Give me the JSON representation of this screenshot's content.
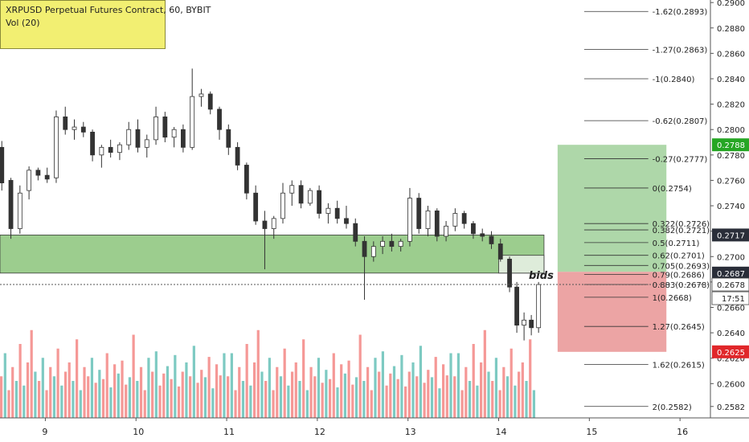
{
  "header": {
    "symbol_line": "XRPUSD Perpetual Futures Contract, 60, BYBIT",
    "volume_line": "Vol (20)"
  },
  "colors": {
    "up": "#26a69a",
    "down": "#ef5350",
    "candle_body": "#333333",
    "zone_green": "#8bc47a",
    "target_green": "#a5d3a0",
    "stop_red": "#ea9a9a",
    "price_badge": "#2a2e39",
    "badge_green": "#26a624",
    "badge_red": "#e0272a",
    "fib_line": "#333333"
  },
  "price_axis": {
    "ticks": [
      "0.2900",
      "0.2880",
      "0.2860",
      "0.2840",
      "0.2820",
      "0.2800",
      "0.2780",
      "0.2760",
      "0.2740",
      "0.2720",
      "0.2700",
      "0.2680",
      "0.2660",
      "0.2640",
      "0.2620",
      "0.2600",
      "0.2582"
    ],
    "current_price": "0.2678",
    "countdown": "17:51",
    "badges": [
      {
        "label": "0.2788",
        "price": 0.2788,
        "color": "#26a624"
      },
      {
        "label": "0.2717",
        "price": 0.2717,
        "color": "#2a2e39"
      },
      {
        "label": "0.2687",
        "price": 0.2687,
        "color": "#2a2e39"
      },
      {
        "label": "0.2678",
        "price": 0.2678,
        "color": "#ffffff"
      },
      {
        "label": "0.2625",
        "price": 0.2625,
        "color": "#e0272a"
      }
    ]
  },
  "time_axis": {
    "labels": [
      "9",
      "10",
      "11",
      "12",
      "13",
      "14",
      "15",
      "16"
    ]
  },
  "annotations": {
    "bids_label": "bids"
  },
  "fib_levels": [
    {
      "label": "-1.62(0.2893)",
      "price": 0.2893
    },
    {
      "label": "-1.27(0.2863)",
      "price": 0.2863
    },
    {
      "label": "-1(0.2840)",
      "price": 0.284
    },
    {
      "label": "-0.62(0.2807)",
      "price": 0.2807
    },
    {
      "label": "-0.27(0.2777)",
      "price": 0.2777
    },
    {
      "label": "0(0.2754)",
      "price": 0.2754
    },
    {
      "label": "0.382(0.2721)",
      "price": 0.2721
    },
    {
      "label": "0.322(0.2726)",
      "price": 0.2726
    },
    {
      "label": "0.5(0.2711)",
      "price": 0.2711
    },
    {
      "label": "0.62(0.2701)",
      "price": 0.2701
    },
    {
      "label": "0.705(0.2693)",
      "price": 0.2693
    },
    {
      "label": "0.79(0.2686)",
      "price": 0.2686
    },
    {
      "label": "0.883(0.2678)",
      "price": 0.2678
    },
    {
      "label": "1(0.2668)",
      "price": 0.2668
    },
    {
      "label": "1.27(0.2645)",
      "price": 0.2645
    },
    {
      "label": "1.62(0.2615)",
      "price": 0.2615
    },
    {
      "label": "2(0.2582)",
      "price": 0.2582
    }
  ],
  "chart_data": {
    "type": "candlestick",
    "title": "XRPUSD Perpetual Futures Contract, 60, BYBIT",
    "price_range": [
      0.2573,
      0.2902
    ],
    "time_range_days": [
      8.5,
      16.3
    ],
    "x_ticks": [
      9,
      10,
      11,
      12,
      13,
      14,
      15,
      16
    ],
    "candles": [
      {
        "t": 8.52,
        "o": 0.2786,
        "h": 0.2791,
        "l": 0.2752,
        "c": 0.2758
      },
      {
        "t": 8.62,
        "o": 0.276,
        "h": 0.2762,
        "l": 0.2714,
        "c": 0.2722
      },
      {
        "t": 8.72,
        "o": 0.2722,
        "h": 0.2756,
        "l": 0.2718,
        "c": 0.275
      },
      {
        "t": 8.82,
        "o": 0.2752,
        "h": 0.2771,
        "l": 0.2745,
        "c": 0.2768
      },
      {
        "t": 8.92,
        "o": 0.2768,
        "h": 0.277,
        "l": 0.276,
        "c": 0.2764
      },
      {
        "t": 9.02,
        "o": 0.2764,
        "h": 0.277,
        "l": 0.2758,
        "c": 0.2761
      },
      {
        "t": 9.12,
        "o": 0.2762,
        "h": 0.2815,
        "l": 0.2758,
        "c": 0.281
      },
      {
        "t": 9.22,
        "o": 0.281,
        "h": 0.2818,
        "l": 0.2796,
        "c": 0.28
      },
      {
        "t": 9.32,
        "o": 0.28,
        "h": 0.2808,
        "l": 0.2792,
        "c": 0.2802
      },
      {
        "t": 9.42,
        "o": 0.2802,
        "h": 0.2806,
        "l": 0.2794,
        "c": 0.2798
      },
      {
        "t": 9.52,
        "o": 0.2798,
        "h": 0.28,
        "l": 0.2775,
        "c": 0.278
      },
      {
        "t": 9.62,
        "o": 0.278,
        "h": 0.2788,
        "l": 0.277,
        "c": 0.2786
      },
      {
        "t": 9.72,
        "o": 0.2786,
        "h": 0.2792,
        "l": 0.2778,
        "c": 0.2782
      },
      {
        "t": 9.82,
        "o": 0.2782,
        "h": 0.279,
        "l": 0.2776,
        "c": 0.2788
      },
      {
        "t": 9.92,
        "o": 0.2788,
        "h": 0.2806,
        "l": 0.2784,
        "c": 0.28
      },
      {
        "t": 10.02,
        "o": 0.28,
        "h": 0.2808,
        "l": 0.2782,
        "c": 0.2786
      },
      {
        "t": 10.12,
        "o": 0.2786,
        "h": 0.2796,
        "l": 0.2778,
        "c": 0.2792
      },
      {
        "t": 10.22,
        "o": 0.2792,
        "h": 0.2818,
        "l": 0.2788,
        "c": 0.281
      },
      {
        "t": 10.32,
        "o": 0.281,
        "h": 0.2814,
        "l": 0.279,
        "c": 0.2794
      },
      {
        "t": 10.42,
        "o": 0.2794,
        "h": 0.2802,
        "l": 0.2786,
        "c": 0.28
      },
      {
        "t": 10.52,
        "o": 0.28,
        "h": 0.2804,
        "l": 0.2782,
        "c": 0.2786
      },
      {
        "t": 10.62,
        "o": 0.2786,
        "h": 0.2848,
        "l": 0.2784,
        "c": 0.2826
      },
      {
        "t": 10.72,
        "o": 0.2826,
        "h": 0.2832,
        "l": 0.2818,
        "c": 0.2828
      },
      {
        "t": 10.82,
        "o": 0.2828,
        "h": 0.283,
        "l": 0.2812,
        "c": 0.2816
      },
      {
        "t": 10.92,
        "o": 0.2816,
        "h": 0.2818,
        "l": 0.2792,
        "c": 0.28
      },
      {
        "t": 11.02,
        "o": 0.28,
        "h": 0.2804,
        "l": 0.278,
        "c": 0.2786
      },
      {
        "t": 11.12,
        "o": 0.2786,
        "h": 0.279,
        "l": 0.2768,
        "c": 0.2772
      },
      {
        "t": 11.22,
        "o": 0.2772,
        "h": 0.2774,
        "l": 0.2745,
        "c": 0.275
      },
      {
        "t": 11.32,
        "o": 0.275,
        "h": 0.2756,
        "l": 0.2725,
        "c": 0.2728
      },
      {
        "t": 11.42,
        "o": 0.2728,
        "h": 0.2736,
        "l": 0.269,
        "c": 0.2722
      },
      {
        "t": 11.52,
        "o": 0.2722,
        "h": 0.2732,
        "l": 0.2714,
        "c": 0.273
      },
      {
        "t": 11.62,
        "o": 0.273,
        "h": 0.2758,
        "l": 0.2726,
        "c": 0.275
      },
      {
        "t": 11.72,
        "o": 0.275,
        "h": 0.276,
        "l": 0.274,
        "c": 0.2756
      },
      {
        "t": 11.82,
        "o": 0.2756,
        "h": 0.276,
        "l": 0.2738,
        "c": 0.2742
      },
      {
        "t": 11.92,
        "o": 0.2742,
        "h": 0.2754,
        "l": 0.274,
        "c": 0.2752
      },
      {
        "t": 12.02,
        "o": 0.2752,
        "h": 0.2756,
        "l": 0.273,
        "c": 0.2734
      },
      {
        "t": 12.12,
        "o": 0.2734,
        "h": 0.2742,
        "l": 0.2726,
        "c": 0.2738
      },
      {
        "t": 12.22,
        "o": 0.2738,
        "h": 0.2744,
        "l": 0.2726,
        "c": 0.273
      },
      {
        "t": 12.32,
        "o": 0.273,
        "h": 0.274,
        "l": 0.2722,
        "c": 0.2726
      },
      {
        "t": 12.42,
        "o": 0.2726,
        "h": 0.273,
        "l": 0.2708,
        "c": 0.2712
      },
      {
        "t": 12.52,
        "o": 0.2712,
        "h": 0.2716,
        "l": 0.2666,
        "c": 0.27
      },
      {
        "t": 12.62,
        "o": 0.27,
        "h": 0.2712,
        "l": 0.2696,
        "c": 0.2708
      },
      {
        "t": 12.72,
        "o": 0.2708,
        "h": 0.2716,
        "l": 0.2702,
        "c": 0.2712
      },
      {
        "t": 12.82,
        "o": 0.2712,
        "h": 0.2718,
        "l": 0.2704,
        "c": 0.2708
      },
      {
        "t": 12.92,
        "o": 0.2708,
        "h": 0.2714,
        "l": 0.2704,
        "c": 0.2712
      },
      {
        "t": 13.02,
        "o": 0.2712,
        "h": 0.2754,
        "l": 0.2708,
        "c": 0.2746
      },
      {
        "t": 13.12,
        "o": 0.2746,
        "h": 0.275,
        "l": 0.2718,
        "c": 0.2722
      },
      {
        "t": 13.22,
        "o": 0.2722,
        "h": 0.274,
        "l": 0.2716,
        "c": 0.2736
      },
      {
        "t": 13.32,
        "o": 0.2736,
        "h": 0.2738,
        "l": 0.2712,
        "c": 0.2716
      },
      {
        "t": 13.42,
        "o": 0.2716,
        "h": 0.2728,
        "l": 0.2712,
        "c": 0.2724
      },
      {
        "t": 13.52,
        "o": 0.2724,
        "h": 0.2738,
        "l": 0.272,
        "c": 0.2734
      },
      {
        "t": 13.62,
        "o": 0.2734,
        "h": 0.2736,
        "l": 0.2722,
        "c": 0.2726
      },
      {
        "t": 13.72,
        "o": 0.2726,
        "h": 0.2728,
        "l": 0.2714,
        "c": 0.2718
      },
      {
        "t": 13.82,
        "o": 0.2718,
        "h": 0.2722,
        "l": 0.2712,
        "c": 0.2716
      },
      {
        "t": 13.92,
        "o": 0.2716,
        "h": 0.272,
        "l": 0.2706,
        "c": 0.271
      },
      {
        "t": 14.02,
        "o": 0.271,
        "h": 0.2714,
        "l": 0.2696,
        "c": 0.2698
      },
      {
        "t": 14.12,
        "o": 0.2698,
        "h": 0.27,
        "l": 0.2672,
        "c": 0.2676
      },
      {
        "t": 14.2,
        "o": 0.2676,
        "h": 0.268,
        "l": 0.264,
        "c": 0.2646
      },
      {
        "t": 14.28,
        "o": 0.2646,
        "h": 0.2656,
        "l": 0.2634,
        "c": 0.265
      },
      {
        "t": 14.36,
        "o": 0.265,
        "h": 0.2654,
        "l": 0.2638,
        "c": 0.2644
      },
      {
        "t": 14.44,
        "o": 0.2644,
        "h": 0.268,
        "l": 0.264,
        "c": 0.2678
      }
    ],
    "volume": {
      "label": "Vol (20)",
      "ma_period": 20,
      "bars_per_day": 24,
      "values_relative": [
        0.45,
        0.7,
        0.3,
        0.55,
        0.4,
        0.8,
        0.35,
        0.6,
        0.95,
        0.5,
        0.4,
        0.65,
        0.3,
        0.55,
        0.45,
        0.75,
        0.35,
        0.5,
        0.6,
        0.4,
        0.85,
        0.3,
        0.55,
        0.45,
        0.65,
        0.38,
        0.52,
        0.42,
        0.7,
        0.33,
        0.58,
        0.48,
        0.62,
        0.36,
        0.44,
        0.9,
        0.4,
        0.55,
        0.3,
        0.65,
        0.5,
        0.72,
        0.35,
        0.48,
        0.56,
        0.42,
        0.68,
        0.34,
        0.5,
        0.6,
        0.45,
        0.78,
        0.38,
        0.52,
        0.44,
        0.66,
        0.32,
        0.58,
        0.46,
        0.7
      ]
    },
    "zones": [
      {
        "name": "support-zone",
        "from_t": 8.5,
        "to_t": 14.5,
        "from_price": 0.2687,
        "to_price": 0.2717
      },
      {
        "name": "entry-zone",
        "from_t": 14.0,
        "to_t": 14.5,
        "from_price": 0.2687,
        "to_price": 0.2701
      },
      {
        "name": "target-zone",
        "from_t": 14.65,
        "to_t": 15.85,
        "from_price": 0.2688,
        "to_price": 0.2788
      },
      {
        "name": "stop-zone",
        "from_t": 14.65,
        "to_t": 15.85,
        "from_price": 0.2625,
        "to_price": 0.2688
      }
    ],
    "fib_segment_t": [
      14.5,
      15.65
    ]
  }
}
